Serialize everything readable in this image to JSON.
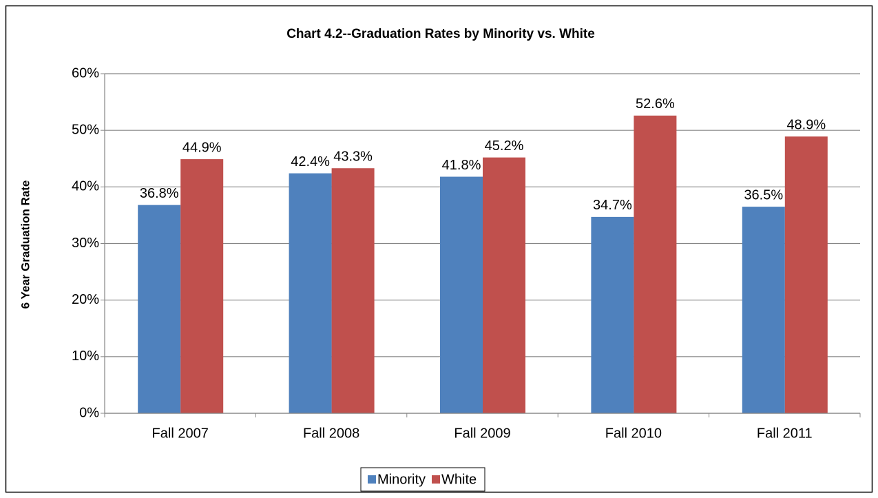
{
  "chart_data": {
    "type": "bar",
    "title": "Chart 4.2--Graduation Rates by Minority vs. White",
    "y_axis_label": "6 Year Graduation Rate",
    "categories": [
      "Fall 2007",
      "Fall 2008",
      "Fall 2009",
      "Fall 2010",
      "Fall 2011"
    ],
    "series": [
      {
        "name": "Minority",
        "color": "#4f81bd",
        "values": [
          36.8,
          42.4,
          41.8,
          34.7,
          36.5
        ],
        "value_labels": [
          "36.8%",
          "42.4%",
          "41.8%",
          "34.7%",
          "36.5%"
        ]
      },
      {
        "name": "White",
        "color": "#c0504d",
        "values": [
          44.9,
          43.3,
          45.2,
          52.6,
          48.9
        ],
        "value_labels": [
          "44.9%",
          "43.3%",
          "45.2%",
          "52.6%",
          "48.9%"
        ]
      }
    ],
    "ylim": [
      0,
      60
    ],
    "yticks": [
      {
        "value": 0,
        "label": "0%"
      },
      {
        "value": 10,
        "label": "10%"
      },
      {
        "value": 20,
        "label": "20%"
      },
      {
        "value": 30,
        "label": "30%"
      },
      {
        "value": 40,
        "label": "40%"
      },
      {
        "value": 50,
        "label": "50%"
      },
      {
        "value": 60,
        "label": "60%"
      }
    ],
    "grid": true,
    "legend": "bottom"
  }
}
